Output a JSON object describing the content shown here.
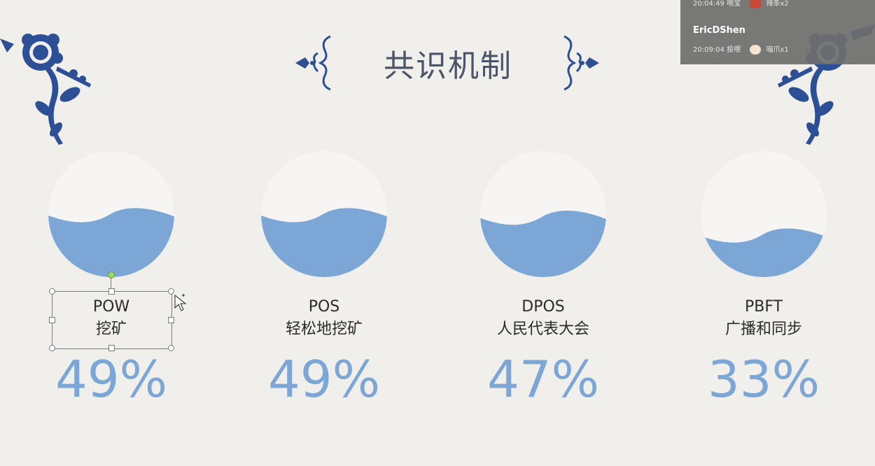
{
  "slide": {
    "title": "共识机制"
  },
  "cards": [
    {
      "name": "POW",
      "sub": "挖矿",
      "percent": "49%",
      "fill": 0.49
    },
    {
      "name": "POS",
      "sub": "轻松地挖矿",
      "percent": "49%",
      "fill": 0.49
    },
    {
      "name": "DPOS",
      "sub": "人民代表大会",
      "percent": "47%",
      "fill": 0.47
    },
    {
      "name": "PBFT",
      "sub": "广播和同步",
      "percent": "33%",
      "fill": 0.33
    }
  ],
  "chat": {
    "line1_time": "20:04:49",
    "line1_action": "喂宝",
    "line1_gift": "辣条x2",
    "user": "EricDShen",
    "line2_time": "20:09:04",
    "line2_action": "投喂",
    "line2_gift": "喵爪x1"
  },
  "colors": {
    "background": "#f1efeb",
    "wave": "#7ba6d6",
    "circle": "#f6f5f4",
    "ornament": "#2d4f96",
    "title": "#4a5568"
  },
  "icons": {
    "title_left": "scroll-ornament-icon",
    "title_right": "scroll-ornament-icon",
    "corner_left": "flower-branch-icon",
    "corner_right": "flower-branch-icon",
    "cursor": "move-cursor-icon",
    "gift": "gift-icon"
  }
}
